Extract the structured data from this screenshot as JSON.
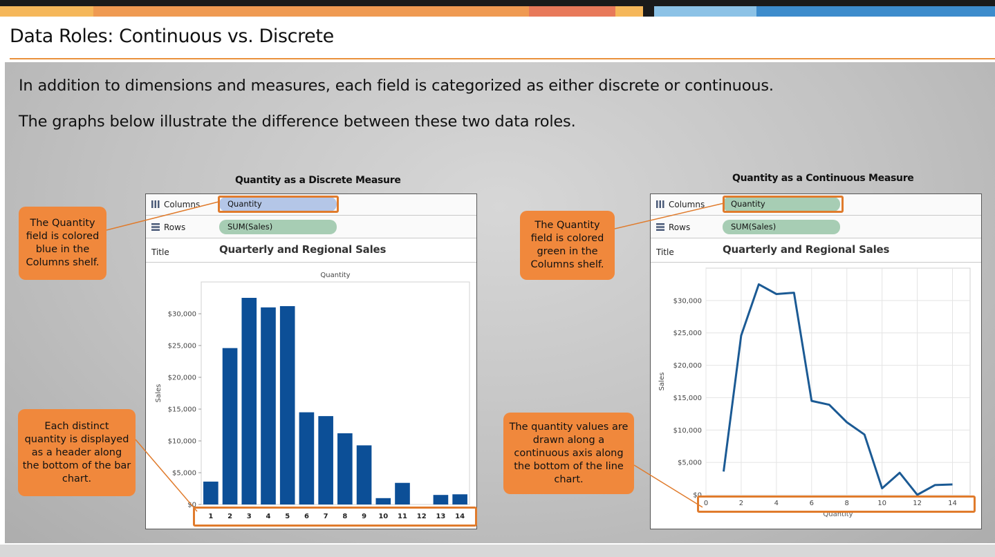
{
  "page": {
    "title": "Data Roles: Continuous vs. Discrete",
    "intro_line1": "In addition to dimensions and measures, each field is categorized as either discrete or continuous.",
    "intro_line2": "The graphs below illustrate the difference between these two data roles."
  },
  "colors": {
    "accent_orange": "#f0883c",
    "highlight_border": "#e07b2c",
    "bar_blue": "#0c4f97",
    "line_blue": "#1b5a94",
    "pill_discrete": "#b4c6e7",
    "pill_continuous": "#a7cdb4",
    "pill_rows": "#a7cdb4"
  },
  "left_panel": {
    "heading": "Quantity as a Discrete Measure",
    "columns_label": "Columns",
    "columns_pill": "Quantity",
    "rows_label": "Rows",
    "rows_pill": "SUM(Sales)",
    "title_label": "Title",
    "title_value": "Quarterly and Regional Sales",
    "callout_top": "The Quantity field is colored blue in the Columns shelf.",
    "callout_bottom": "Each distinct quantity is displayed as a header along the bottom of the bar chart."
  },
  "right_panel": {
    "heading": "Quantity as a Continuous Measure",
    "columns_label": "Columns",
    "columns_pill": "Quantity",
    "rows_label": "Rows",
    "rows_pill": "SUM(Sales)",
    "title_label": "Title",
    "title_value": "Quarterly and Regional Sales",
    "callout_top": "The Quantity field is colored green in the Columns shelf.",
    "callout_bottom": "The quantity values are drawn along a continuous axis along the bottom of the line chart."
  },
  "chart_data": [
    {
      "type": "bar",
      "title": "Quarterly and Regional Sales",
      "header_label": "Quantity",
      "ylabel": "Sales",
      "categories": [
        "1",
        "2",
        "3",
        "4",
        "5",
        "6",
        "7",
        "8",
        "9",
        "10",
        "11",
        "12",
        "13",
        "14"
      ],
      "values": [
        3600,
        24600,
        32500,
        31000,
        31200,
        14500,
        13900,
        11200,
        9300,
        1000,
        3400,
        0,
        1500,
        1600
      ],
      "ylim": [
        0,
        35000
      ],
      "yticks": [
        "$0",
        "$5,000",
        "$10,000",
        "$15,000",
        "$20,000",
        "$25,000",
        "$30,000"
      ],
      "grid": false
    },
    {
      "type": "line",
      "title": "Quarterly and Regional Sales",
      "xlabel": "Quantity",
      "ylabel": "Sales",
      "x": [
        1,
        2,
        3,
        4,
        5,
        6,
        7,
        8,
        9,
        10,
        11,
        12,
        13,
        14
      ],
      "values": [
        3600,
        24600,
        32500,
        31000,
        31200,
        14500,
        13900,
        11200,
        9300,
        1000,
        3400,
        0,
        1500,
        1600
      ],
      "xlim": [
        0,
        15
      ],
      "ylim": [
        0,
        35000
      ],
      "xticks": [
        "0",
        "2",
        "4",
        "6",
        "8",
        "10",
        "12",
        "14"
      ],
      "yticks": [
        "$0",
        "$5,000",
        "$10,000",
        "$15,000",
        "$20,000",
        "$25,000",
        "$30,000"
      ],
      "grid": true
    }
  ]
}
